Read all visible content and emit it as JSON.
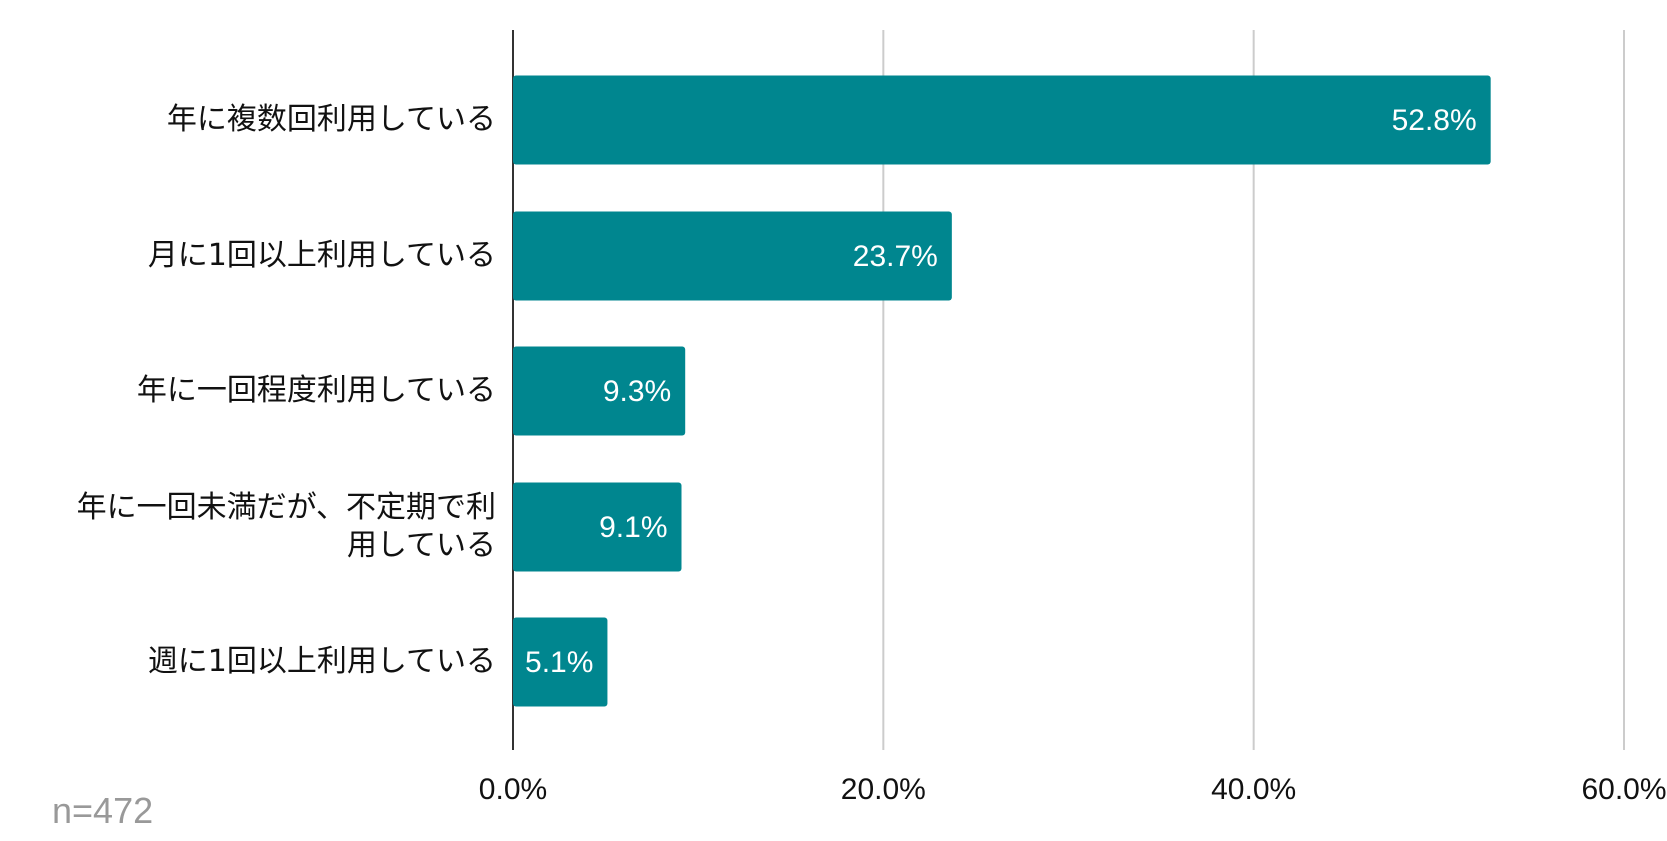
{
  "chart_data": {
    "type": "bar",
    "orientation": "horizontal",
    "categories": [
      "年に複数回利用している",
      "月に1回以上利用している",
      "年に一回程度利用している",
      "年に一回未満だが、不定期で利用している",
      "週に1回以上利用している"
    ],
    "values": [
      52.8,
      23.7,
      9.3,
      9.1,
      5.1
    ],
    "value_labels": [
      "52.8%",
      "23.7%",
      "9.3%",
      "9.1%",
      "5.1%"
    ],
    "color": "#00868f",
    "xlim": [
      0,
      60
    ],
    "xticks": [
      {
        "value": 0,
        "label": "0.0%"
      },
      {
        "value": 20,
        "label": "20.0%"
      },
      {
        "value": 40,
        "label": "40.0%"
      },
      {
        "value": 60,
        "label": "60.0%"
      }
    ],
    "grid": true,
    "note": "n=472"
  }
}
